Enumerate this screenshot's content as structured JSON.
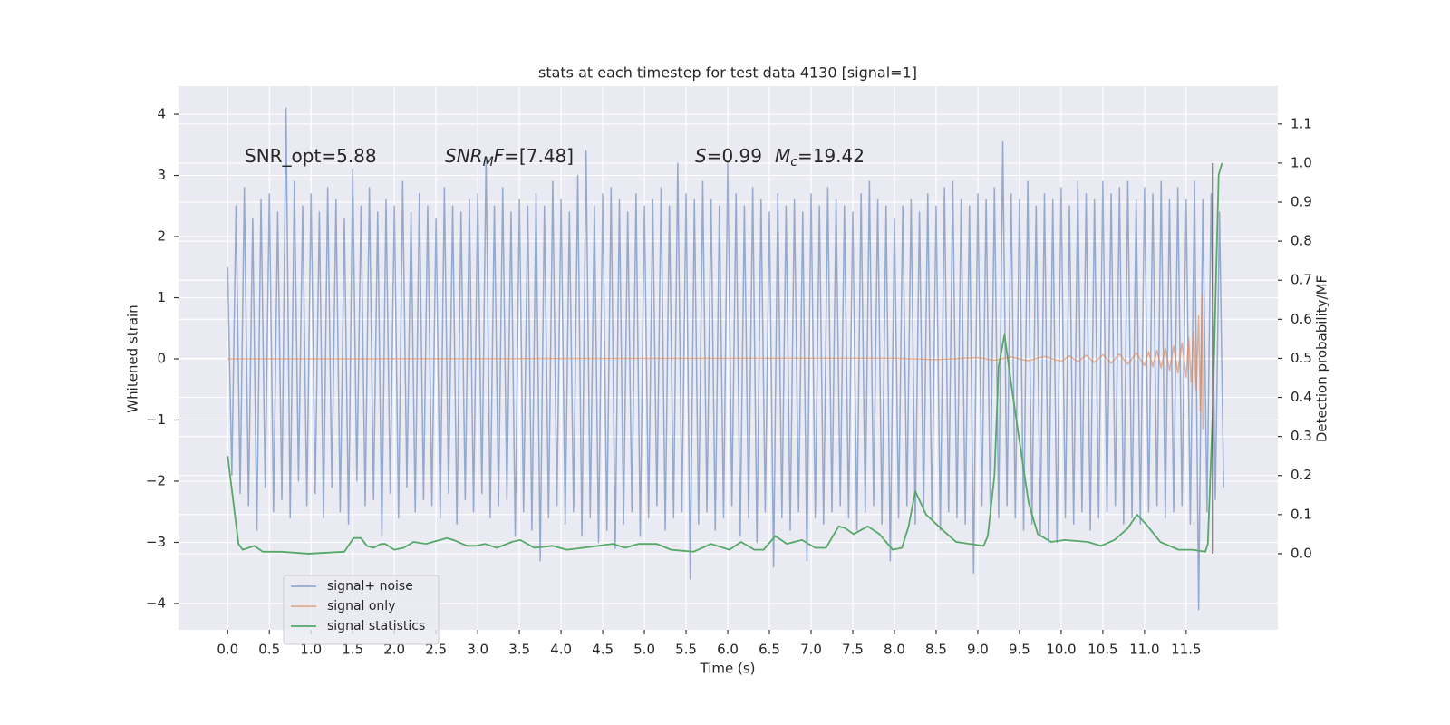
{
  "chart_data": {
    "type": "line",
    "title": "stats at each timestep for test data 4130 [signal=1]",
    "xlabel": "Time (s)",
    "ylabel": "Whitened strain",
    "y2label": "Detection probability/MF",
    "annotations": [
      [
        "SNR_opt=5.88"
      ],
      [
        "SNR",
        "M",
        "F",
        "=[7.48]"
      ],
      [
        "S",
        "=0.99",
        "M",
        "c",
        "=19.42"
      ]
    ],
    "xlim": [
      -0.59,
      12.6
    ],
    "ylim": [
      -4.43,
      4.46
    ],
    "y2lim": [
      -0.195,
      1.197
    ],
    "xticks": [
      {
        "value": 0,
        "label": "0.0"
      },
      0.5,
      {
        "value": 1,
        "label": "1.0"
      },
      1.5,
      {
        "value": 2,
        "label": "2.0"
      },
      2.5,
      {
        "value": 3,
        "label": "3.0"
      },
      3.5,
      {
        "value": 4,
        "label": "4.0"
      },
      4.5,
      {
        "value": 5,
        "label": "5.0"
      },
      5.5,
      {
        "value": 6,
        "label": "6.0"
      },
      6.5,
      {
        "value": 7,
        "label": "7.0"
      },
      7.5,
      {
        "value": 8,
        "label": "8.0"
      },
      8.5,
      {
        "value": 9,
        "label": "9.0"
      },
      9.5,
      {
        "value": 10,
        "label": "10.0"
      },
      10.5,
      {
        "value": 11,
        "label": "11.0"
      },
      11.5
    ],
    "yticks": [
      {
        "value": -4,
        "label": "−4"
      },
      {
        "value": -3,
        "label": "−3"
      },
      {
        "value": -2,
        "label": "−2"
      },
      {
        "value": -1,
        "label": "−1"
      },
      0,
      1,
      2,
      3,
      4
    ],
    "y2ticks": [
      {
        "value": 0,
        "label": "0.0"
      },
      0.1,
      0.2,
      0.3,
      0.4,
      0.5,
      0.6,
      0.7,
      0.8,
      0.9,
      {
        "value": 1,
        "label": "1.0"
      },
      1.1
    ],
    "grid": true,
    "background": "#eaeaf2",
    "legend": "lower left",
    "vline": {
      "x": 11.82,
      "y2range": [
        0,
        1
      ],
      "color": "#555555"
    },
    "series": [
      {
        "name": "signal+ noise",
        "color": "#4c72b0",
        "x": [
          0,
          0.05,
          0.1,
          0.15,
          0.2,
          0.25,
          0.3,
          0.35,
          0.4,
          0.45,
          0.5,
          0.55,
          0.6,
          0.65,
          0.7,
          0.75,
          0.8,
          0.85,
          0.9,
          0.95,
          1,
          1.05,
          1.1,
          1.15,
          1.2,
          1.25,
          1.3,
          1.35,
          1.4,
          1.45,
          1.5,
          1.55,
          1.6,
          1.65,
          1.7,
          1.75,
          1.8,
          1.85,
          1.9,
          1.95,
          2,
          2.05,
          2.1,
          2.15,
          2.2,
          2.25,
          2.3,
          2.35,
          2.4,
          2.45,
          2.5,
          2.55,
          2.6,
          2.65,
          2.7,
          2.75,
          2.8,
          2.85,
          2.9,
          2.95,
          3,
          3.05,
          3.1,
          3.15,
          3.2,
          3.25,
          3.3,
          3.35,
          3.4,
          3.45,
          3.5,
          3.55,
          3.6,
          3.65,
          3.7,
          3.75,
          3.8,
          3.85,
          3.9,
          3.95,
          4,
          4.05,
          4.1,
          4.15,
          4.2,
          4.25,
          4.3,
          4.35,
          4.4,
          4.45,
          4.5,
          4.55,
          4.6,
          4.65,
          4.7,
          4.75,
          4.8,
          4.85,
          4.9,
          4.95,
          5,
          5.05,
          5.1,
          5.15,
          5.2,
          5.25,
          5.3,
          5.35,
          5.4,
          5.45,
          5.5,
          5.55,
          5.6,
          5.65,
          5.7,
          5.75,
          5.8,
          5.85,
          5.9,
          5.95,
          6,
          6.05,
          6.1,
          6.15,
          6.2,
          6.25,
          6.3,
          6.35,
          6.4,
          6.45,
          6.5,
          6.55,
          6.6,
          6.65,
          6.7,
          6.75,
          6.8,
          6.85,
          6.9,
          6.95,
          7,
          7.05,
          7.1,
          7.15,
          7.2,
          7.25,
          7.3,
          7.35,
          7.4,
          7.45,
          7.5,
          7.55,
          7.6,
          7.65,
          7.7,
          7.75,
          7.8,
          7.85,
          7.9,
          7.95,
          8,
          8.05,
          8.1,
          8.15,
          8.2,
          8.25,
          8.3,
          8.35,
          8.4,
          8.45,
          8.5,
          8.55,
          8.6,
          8.65,
          8.7,
          8.75,
          8.8,
          8.85,
          8.9,
          8.95,
          9,
          9.05,
          9.1,
          9.15,
          9.2,
          9.25,
          9.3,
          9.35,
          9.4,
          9.45,
          9.5,
          9.55,
          9.6,
          9.65,
          9.7,
          9.75,
          9.8,
          9.85,
          9.9,
          9.95,
          10,
          10.05,
          10.1,
          10.15,
          10.2,
          10.25,
          10.3,
          10.35,
          10.4,
          10.45,
          10.5,
          10.55,
          10.6,
          10.65,
          10.7,
          10.75,
          10.8,
          10.85,
          10.9,
          10.95,
          11,
          11.05,
          11.1,
          11.15,
          11.2,
          11.25,
          11.3,
          11.35,
          11.4,
          11.45,
          11.5,
          11.55,
          11.6,
          11.65,
          11.7,
          11.75,
          11.8,
          11.85,
          11.9,
          11.95
        ],
        "values": [
          1.5,
          -1.9,
          2.5,
          -2.2,
          2.8,
          -2.4,
          2.3,
          -2.8,
          2.6,
          -2.1,
          2.7,
          -2.5,
          2.4,
          -2.3,
          4.1,
          -2.6,
          2.9,
          -2.0,
          2.5,
          -2.4,
          2.7,
          -2.2,
          2.4,
          -2.6,
          2.8,
          -2.1,
          2.6,
          -2.5,
          2.3,
          -2.7,
          3.1,
          -2.0,
          2.5,
          -2.4,
          2.8,
          -2.3,
          2.4,
          -2.9,
          2.6,
          -2.2,
          2.5,
          -2.6,
          2.9,
          -2.1,
          2.4,
          -2.5,
          2.7,
          -2.3,
          2.5,
          -2.4,
          2.3,
          -2.6,
          2.8,
          -2.2,
          2.5,
          -2.7,
          2.4,
          -2.3,
          2.6,
          -2.5,
          2.7,
          -2.2,
          3.3,
          -2.6,
          2.5,
          -2.4,
          2.8,
          -2.3,
          2.4,
          -2.9,
          2.6,
          -2.5,
          2.5,
          -2.8,
          2.7,
          -3.3,
          2.5,
          -2.6,
          2.9,
          -2.4,
          2.6,
          -2.7,
          2.4,
          -2.5,
          3.0,
          -2.9,
          3.4,
          -2.6,
          2.5,
          -3.0,
          2.7,
          -2.8,
          2.8,
          -3.1,
          2.6,
          -2.7,
          2.4,
          -2.5,
          2.7,
          -2.9,
          2.5,
          -2.6,
          2.6,
          -2.4,
          2.8,
          -2.8,
          2.5,
          -2.6,
          3.2,
          -2.5,
          2.7,
          -3.6,
          2.6,
          -2.7,
          2.9,
          -2.5,
          2.6,
          -2.8,
          2.5,
          -2.6,
          3.2,
          -2.4,
          2.7,
          -2.9,
          2.5,
          -2.6,
          2.8,
          -3.0,
          2.6,
          -2.5,
          2.4,
          -3.4,
          2.7,
          -2.6,
          2.5,
          -2.8,
          2.6,
          -2.5,
          2.4,
          -3.3,
          2.7,
          -2.6,
          2.5,
          -2.7,
          2.8,
          -2.5,
          2.6,
          -2.4,
          2.5,
          -2.6,
          2.4,
          -2.8,
          2.7,
          -2.5,
          2.9,
          -2.4,
          2.6,
          -2.7,
          2.5,
          -3.3,
          2.3,
          -2.6,
          2.5,
          -2.4,
          2.6,
          -2.7,
          2.4,
          -2.5,
          2.7,
          -2.6,
          2.5,
          -2.8,
          2.8,
          -2.5,
          2.9,
          -2.6,
          2.6,
          -2.7,
          2.5,
          -3.5,
          2.7,
          -2.4,
          2.6,
          -2.5,
          2.8,
          -2.6,
          3.55,
          -2.4,
          2.7,
          -2.6,
          2.6,
          -2.8,
          2.9,
          -2.7,
          2.5,
          -2.9,
          2.7,
          -3.0,
          2.6,
          -3.0,
          2.8,
          -2.6,
          2.5,
          -2.7,
          2.9,
          -2.5,
          2.7,
          -2.8,
          2.6,
          -2.6,
          2.9,
          -2.5,
          2.7,
          -2.4,
          2.8,
          -2.7,
          2.9,
          -2.6,
          2.6,
          -2.7,
          2.8,
          -2.5,
          2.7,
          -2.4,
          2.9,
          -2.6,
          2.6,
          -2.5,
          2.8,
          -2.4,
          2.6,
          -2.7,
          2.9,
          -4.1,
          2.6,
          -2.5,
          2.7,
          -2.3,
          2.4,
          -2.1
        ]
      },
      {
        "name": "signal only",
        "color": "#dd8452",
        "x": [
          0,
          8.0,
          8.5,
          9.0,
          9.2,
          9.4,
          9.6,
          9.8,
          10.0,
          10.1,
          10.2,
          10.3,
          10.4,
          10.5,
          10.6,
          10.7,
          10.8,
          10.9,
          11.0,
          11.05,
          11.1,
          11.15,
          11.2,
          11.25,
          11.3,
          11.35,
          11.4,
          11.45,
          11.5,
          11.53,
          11.56,
          11.59,
          11.62,
          11.65,
          11.67,
          11.69,
          11.7
        ],
        "values": [
          0,
          0.01,
          -0.01,
          0.02,
          -0.02,
          0.03,
          -0.03,
          0.04,
          -0.04,
          0.05,
          -0.05,
          0.06,
          -0.06,
          0.07,
          -0.07,
          0.08,
          -0.09,
          0.1,
          -0.11,
          0.12,
          -0.13,
          0.14,
          -0.15,
          0.17,
          -0.19,
          0.21,
          -0.23,
          0.26,
          -0.3,
          0.34,
          -0.38,
          0.44,
          -0.52,
          0.7,
          -0.85,
          1.05,
          -1.15
        ]
      },
      {
        "name": "signal statistics",
        "color": "#55a868",
        "axis": "y2",
        "x": [
          0,
          0.13,
          0.18,
          0.32,
          0.42,
          0.64,
          0.97,
          1.4,
          1.51,
          1.6,
          1.67,
          1.75,
          1.84,
          1.89,
          2.0,
          2.11,
          2.23,
          2.38,
          2.63,
          2.71,
          2.87,
          2.98,
          3.09,
          3.23,
          3.41,
          3.51,
          3.68,
          3.9,
          4.07,
          4.45,
          4.62,
          4.77,
          4.93,
          5.15,
          5.32,
          5.59,
          5.8,
          6.02,
          6.16,
          6.32,
          6.43,
          6.57,
          6.71,
          6.89,
          7.05,
          7.18,
          7.33,
          7.41,
          7.51,
          7.68,
          7.82,
          7.98,
          8.09,
          8.17,
          8.25,
          8.38,
          8.58,
          8.74,
          8.9,
          9.07,
          9.12,
          9.2,
          9.25,
          9.32,
          9.41,
          9.52,
          9.61,
          9.72,
          9.88,
          10.04,
          10.32,
          10.48,
          10.64,
          10.8,
          10.91,
          11.02,
          11.19,
          11.41,
          11.57,
          11.73,
          11.76,
          11.82,
          11.86,
          11.89,
          11.93
        ],
        "values": [
          0.25,
          0.025,
          0.01,
          0.02,
          0.005,
          0.005,
          0,
          0.005,
          0.04,
          0.04,
          0.02,
          0.015,
          0.025,
          0.025,
          0.01,
          0.015,
          0.03,
          0.025,
          0.04,
          0.035,
          0.02,
          0.02,
          0.025,
          0.015,
          0.03,
          0.035,
          0.015,
          0.02,
          0.01,
          0.02,
          0.025,
          0.015,
          0.025,
          0.025,
          0.01,
          0.005,
          0.025,
          0.01,
          0.03,
          0.01,
          0.01,
          0.045,
          0.025,
          0.035,
          0.015,
          0.015,
          0.07,
          0.065,
          0.05,
          0.07,
          0.05,
          0.01,
          0.015,
          0.07,
          0.16,
          0.1,
          0.06,
          0.03,
          0.025,
          0.02,
          0.045,
          0.2,
          0.48,
          0.56,
          0.42,
          0.26,
          0.13,
          0.05,
          0.03,
          0.035,
          0.03,
          0.02,
          0.035,
          0.065,
          0.1,
          0.075,
          0.03,
          0.01,
          0.01,
          0.005,
          0.025,
          0.37,
          0.72,
          0.97,
          1.0
        ]
      }
    ]
  }
}
